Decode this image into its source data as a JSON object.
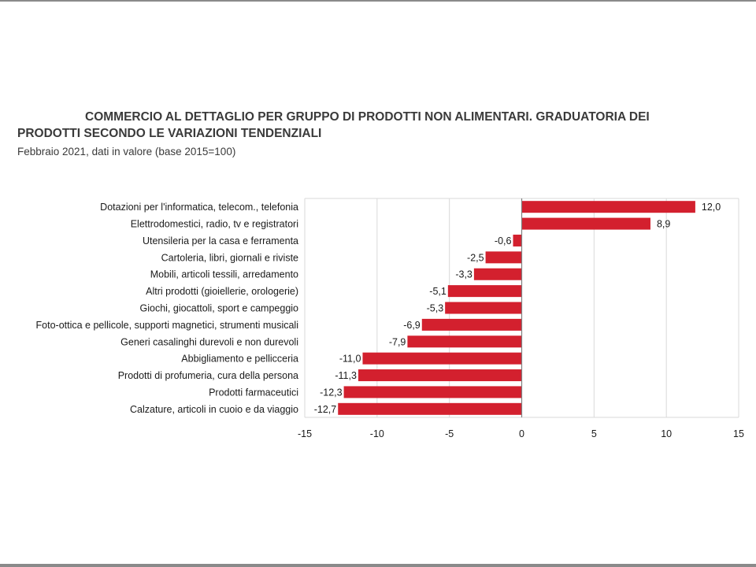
{
  "title_line1": "COMMERCIO AL DETTAGLIO PER GRUPPO DI PRODOTTI NON ALIMENTARI. GRADUATORIA DEI",
  "title_line2": "PRODOTTI SECONDO LE VARIAZIONI TENDENZIALI",
  "subtitle": "Febbraio 2021, dati in valore (base 2015=100)",
  "chart_data": {
    "type": "bar",
    "orientation": "horizontal",
    "categories": [
      "Dotazioni per l'informatica, telecom., telefonia",
      "Elettrodomestici, radio, tv e registratori",
      "Utensileria per la casa e ferramenta",
      "Cartoleria, libri, giornali e riviste",
      "Mobili, articoli tessili, arredamento",
      "Altri prodotti (gioiellerie, orologerie)",
      "Giochi, giocattoli, sport e campeggio",
      "Foto-ottica e pellicole, supporti magnetici, strumenti  musicali",
      "Generi casalinghi durevoli e non durevoli",
      "Abbigliamento e pellicceria",
      "Prodotti di profumeria, cura della persona",
      "Prodotti farmaceutici",
      "Calzature, articoli in cuoio e da viaggio"
    ],
    "values": [
      12.0,
      8.9,
      -0.6,
      -2.5,
      -3.3,
      -5.1,
      -5.3,
      -6.9,
      -7.9,
      -11.0,
      -11.3,
      -12.3,
      -12.7
    ],
    "value_labels": [
      "12,0",
      "8,9",
      "-0,6",
      "-2,5",
      "-3,3",
      "-5,1",
      "-5,3",
      "-6,9",
      "-7,9",
      "-11,0",
      "-11,3",
      "-12,3",
      "-12,7"
    ],
    "xlim": [
      -15,
      15
    ],
    "xticks": [
      -15,
      -10,
      -5,
      0,
      5,
      10,
      15
    ],
    "xtick_labels": [
      "-15",
      "-10",
      "-5",
      "0",
      "5",
      "10",
      "15"
    ],
    "grid": true,
    "colors": {
      "bar": "#d3202e",
      "grid": "#d9d9d9",
      "axis": "#7f7f7f"
    }
  }
}
